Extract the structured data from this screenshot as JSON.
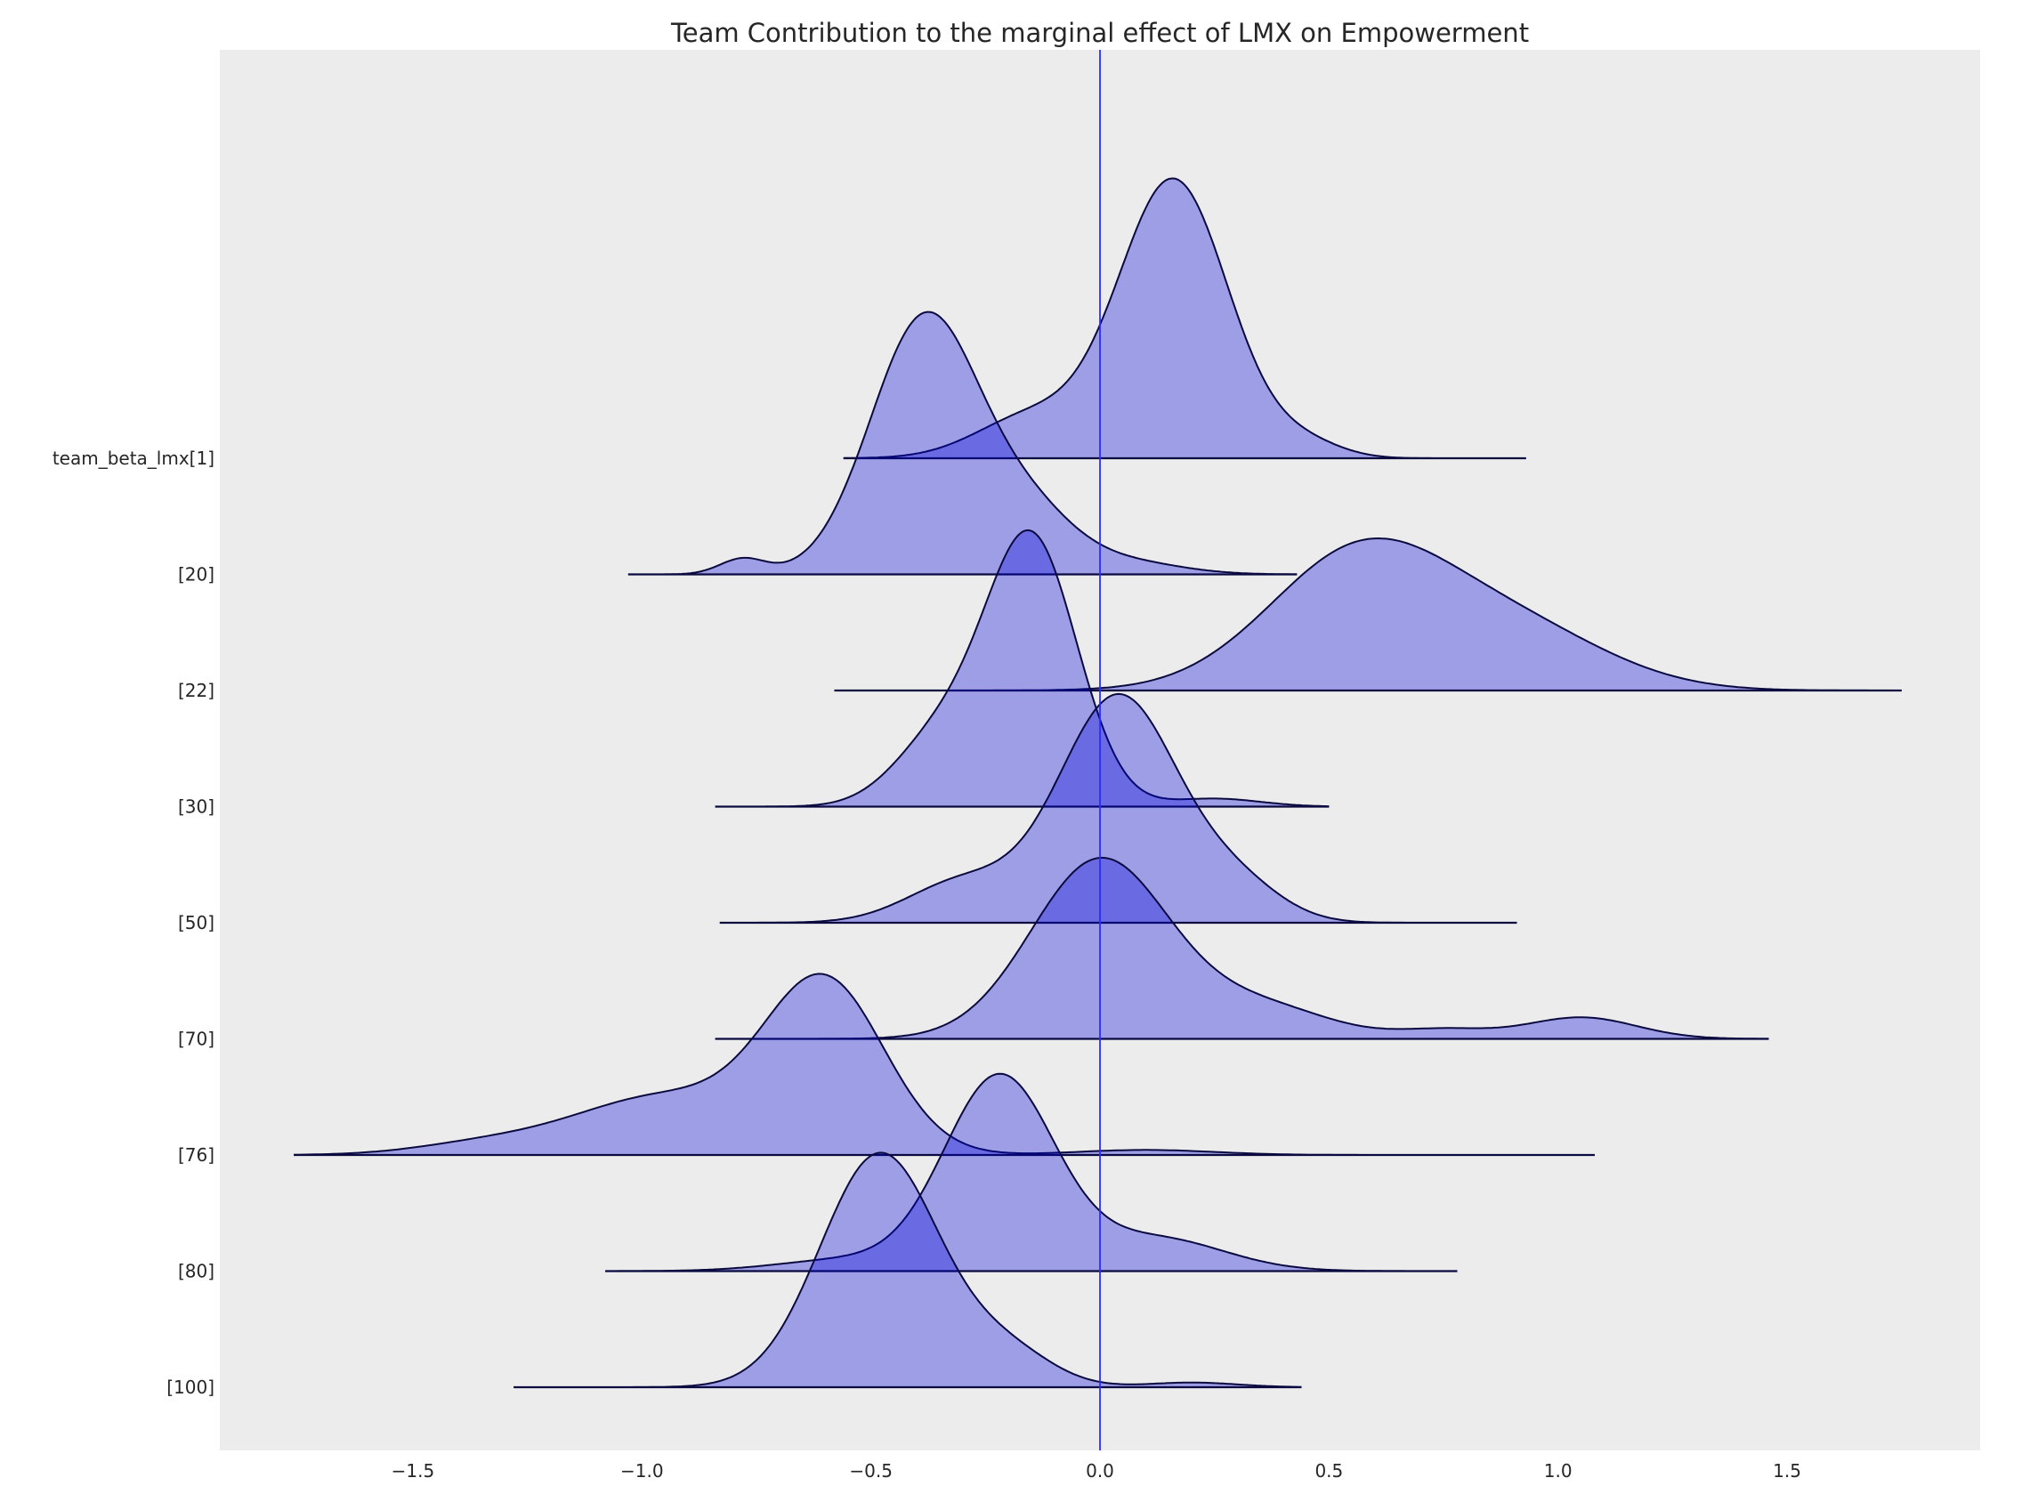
{
  "chart_data": {
    "type": "ridgeplot",
    "title": "Team Contribution to the marginal effect of LMX on Empowerment",
    "xlabel": "",
    "ylabel": "",
    "xlim": [
      -1.92,
      1.92
    ],
    "x_ticks": [
      "−1.5",
      "−1.0",
      "−0.5",
      "0.0",
      "0.5",
      "1.0",
      "1.5"
    ],
    "x_tick_values": [
      -1.5,
      -1.0,
      -0.5,
      0.0,
      0.5,
      1.0,
      1.5
    ],
    "reference_line_x": 0.0,
    "grid": false,
    "colors": {
      "fill": "#0000dc",
      "line": "#0a0a40",
      "ref": "#2b2bff",
      "background": "#ececec"
    },
    "series": [
      {
        "name": "team_beta_lmx[1]",
        "range": [
          -0.56,
          0.93
        ],
        "peak_x": 0.16,
        "peak_height": 2.41,
        "components": [
          [
            0.16,
            0.12,
            1
          ],
          [
            -0.15,
            0.12,
            0.15
          ],
          [
            0.45,
            0.08,
            0.05
          ]
        ]
      },
      {
        "name": "[20]",
        "range": [
          -1.03,
          0.43
        ],
        "peak_x": -0.37,
        "peak_height": 2.26,
        "components": [
          [
            -0.38,
            0.12,
            1
          ],
          [
            -0.15,
            0.1,
            0.2
          ],
          [
            -0.78,
            0.05,
            0.06
          ],
          [
            0.05,
            0.12,
            0.05
          ]
        ]
      },
      {
        "name": "[22]",
        "range": [
          -0.58,
          1.75
        ],
        "peak_x": 0.6,
        "peak_height": 1.31,
        "components": [
          [
            0.57,
            0.2,
            1
          ],
          [
            0.92,
            0.2,
            0.4
          ]
        ]
      },
      {
        "name": "[30]",
        "range": [
          -0.84,
          0.5
        ],
        "peak_x": -0.14,
        "peak_height": 2.38,
        "components": [
          [
            -0.15,
            0.1,
            1
          ],
          [
            -0.35,
            0.1,
            0.25
          ],
          [
            0.25,
            0.1,
            0.03
          ]
        ]
      },
      {
        "name": "[50]",
        "range": [
          -0.83,
          0.91
        ],
        "peak_x": 0.03,
        "peak_height": 1.97,
        "components": [
          [
            0.04,
            0.13,
            1
          ],
          [
            -0.3,
            0.12,
            0.18
          ],
          [
            0.3,
            0.1,
            0.15
          ]
        ]
      },
      {
        "name": "[70]",
        "range": [
          -0.84,
          1.46
        ],
        "peak_x": 0.0,
        "peak_height": 1.56,
        "components": [
          [
            0.0,
            0.15,
            1
          ],
          [
            0.35,
            0.15,
            0.18
          ],
          [
            1.05,
            0.12,
            0.12
          ],
          [
            0.75,
            0.1,
            0.05
          ]
        ]
      },
      {
        "name": "[76]",
        "range": [
          -1.76,
          1.08
        ],
        "peak_x": -0.6,
        "peak_height": 1.56,
        "components": [
          [
            -0.6,
            0.13,
            1
          ],
          [
            -0.95,
            0.2,
            0.35
          ],
          [
            -1.35,
            0.15,
            0.06
          ],
          [
            0.1,
            0.15,
            0.03
          ]
        ]
      },
      {
        "name": "[80]",
        "range": [
          -1.08,
          0.78
        ],
        "peak_x": -0.2,
        "peak_height": 1.7,
        "components": [
          [
            -0.22,
            0.12,
            1
          ],
          [
            0.12,
            0.15,
            0.17
          ],
          [
            -0.55,
            0.15,
            0.06
          ]
        ]
      },
      {
        "name": "[100]",
        "range": [
          -1.28,
          0.44
        ],
        "peak_x": -0.49,
        "peak_height": 2.02,
        "components": [
          [
            -0.48,
            0.13,
            1
          ],
          [
            -0.2,
            0.1,
            0.14
          ],
          [
            0.2,
            0.1,
            0.02
          ]
        ]
      }
    ]
  }
}
